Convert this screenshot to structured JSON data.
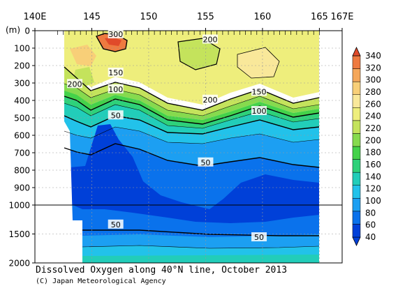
{
  "chart_data": {
    "type": "heatmap",
    "title": "Dissolved Oxygen along 40°N line, October 2013",
    "credit": "(C) Japan Meteorological Agency",
    "x_axis": {
      "ticks": [
        140,
        145,
        150,
        155,
        160,
        165,
        167
      ],
      "tick_labels": [
        "140E",
        "145",
        "150",
        "155",
        "160",
        "165",
        "167E"
      ],
      "range": [
        140,
        167
      ]
    },
    "y_axis": {
      "unit_label": "(m)",
      "upper_ticks": [
        0,
        100,
        200,
        300,
        400,
        500,
        600,
        700,
        800,
        900,
        1000
      ],
      "lower_ticks": [
        1000,
        1500,
        2000
      ],
      "upper_range": [
        0,
        1000
      ],
      "lower_range": [
        1000,
        2000
      ],
      "tick_labels": [
        "0",
        "100",
        "200",
        "300",
        "400",
        "500",
        "600",
        "700",
        "800",
        "900",
        "1000",
        "1500",
        "2000"
      ]
    },
    "colorbar": {
      "levels": [
        40,
        60,
        80,
        100,
        120,
        140,
        160,
        180,
        200,
        220,
        240,
        260,
        280,
        300,
        320,
        340
      ],
      "labels": [
        "40",
        "60",
        "80",
        "100",
        "120",
        "140",
        "160",
        "180",
        "200",
        "220",
        "240",
        "260",
        "280",
        "300",
        "320",
        "340"
      ],
      "colors": [
        "#0040d8",
        "#0a72ec",
        "#1c9ff2",
        "#22c2ea",
        "#22cdb9",
        "#2ed17a",
        "#44d24a",
        "#86da4e",
        "#c4e35c",
        "#eeee7c",
        "#f9e89a",
        "#f8cf78",
        "#f5a75a",
        "#ee7a40",
        "#e04a2a"
      ]
    },
    "contour_labels": [
      {
        "text": "300",
        "lon": 147.1,
        "depth": 20
      },
      {
        "text": "200",
        "lon": 155.4,
        "depth": 50
      },
      {
        "text": "200",
        "lon": 143.5,
        "depth": 305
      },
      {
        "text": "150",
        "lon": 147.1,
        "depth": 240
      },
      {
        "text": "100",
        "lon": 147.1,
        "depth": 335
      },
      {
        "text": "200",
        "lon": 155.4,
        "depth": 395
      },
      {
        "text": "150",
        "lon": 159.7,
        "depth": 350
      },
      {
        "text": "100",
        "lon": 159.7,
        "depth": 460
      },
      {
        "text": "50",
        "lon": 147.1,
        "depth": 485
      },
      {
        "text": "50",
        "lon": 155.0,
        "depth": 755
      },
      {
        "text": "50",
        "lon": 147.1,
        "depth": 1335
      },
      {
        "text": "50",
        "lon": 159.7,
        "depth": 1555
      }
    ]
  }
}
